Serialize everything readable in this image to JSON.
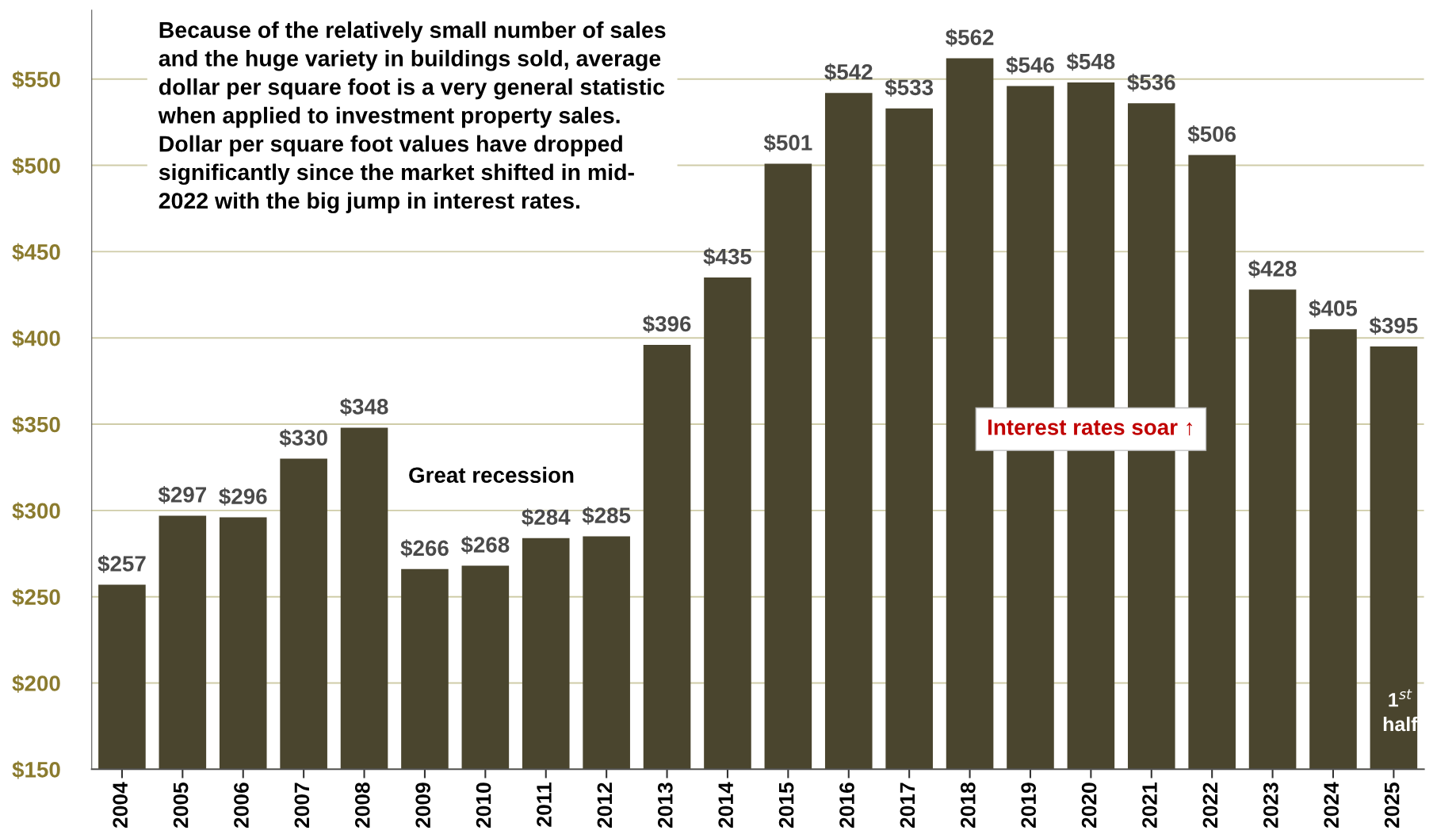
{
  "chart_data": {
    "type": "bar",
    "categories": [
      "2004",
      "2005",
      "2006",
      "2007",
      "2008",
      "2009",
      "2010",
      "2011",
      "2012",
      "2013",
      "2014",
      "2015",
      "2016",
      "2017",
      "2018",
      "2019",
      "2020",
      "2021",
      "2022",
      "2023",
      "2024",
      "2025"
    ],
    "values": [
      257,
      297,
      296,
      330,
      348,
      266,
      268,
      284,
      285,
      396,
      435,
      501,
      542,
      533,
      562,
      546,
      548,
      536,
      506,
      428,
      405,
      395
    ],
    "value_labels": [
      "$257",
      "$297",
      "$296",
      "$330",
      "$348",
      "$266",
      "$268",
      "$284",
      "$285",
      "$396",
      "$435",
      "$501",
      "$542",
      "$533",
      "$562",
      "$546",
      "$548",
      "$536",
      "$506",
      "$428",
      "$405",
      "$395"
    ],
    "color": "#4a452e",
    "ylim": [
      150,
      590
    ],
    "yticks": [
      {
        "value": 150,
        "label": "$150"
      },
      {
        "value": 200,
        "label": "$200"
      },
      {
        "value": 250,
        "label": "$250"
      },
      {
        "value": 300,
        "label": "$300"
      },
      {
        "value": 350,
        "label": "$350"
      },
      {
        "value": 400,
        "label": "$400"
      },
      {
        "value": 450,
        "label": "$450"
      },
      {
        "value": 500,
        "label": "$500"
      },
      {
        "value": 550,
        "label": "$550"
      }
    ],
    "grid": "y",
    "annotations": [
      "Because of the relatively small number of sales\nand the huge variety in buildings sold, average\ndollar per square foot is a very general statistic\nwhen applied to investment property sales.\nDollar per square foot values have dropped\nsignificantly since the market shifted in mid-\n2022 with the big jump in interest rates.",
      "Great recession",
      "Interest rates soar ↑",
      "1$^{st}$\nhalf"
    ]
  }
}
